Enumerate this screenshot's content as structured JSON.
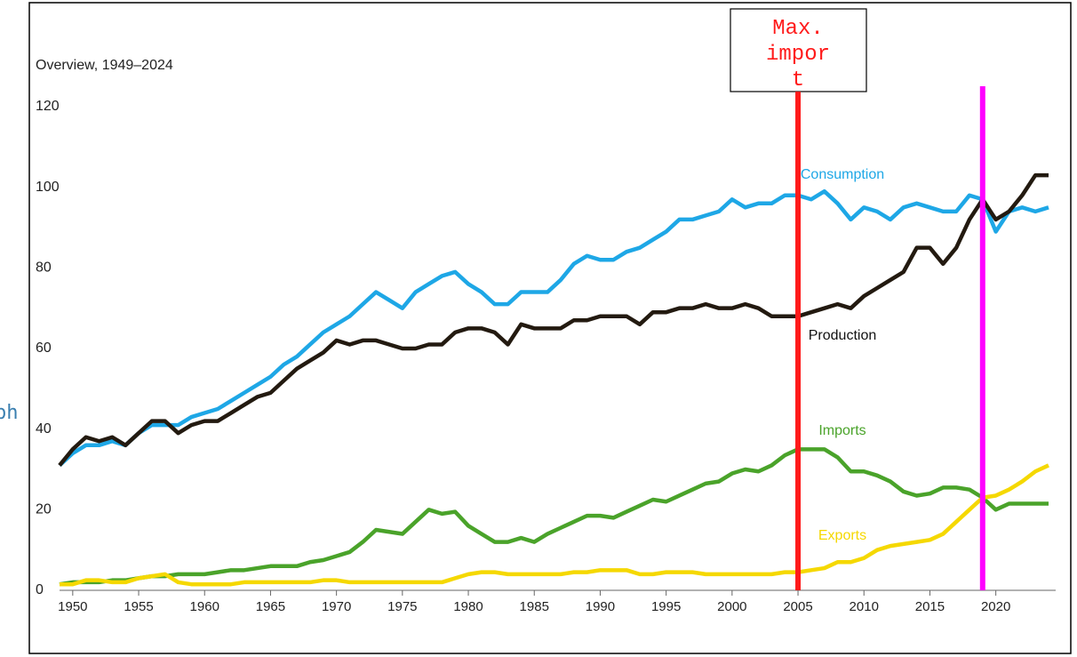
{
  "chart_data": {
    "type": "line",
    "subtitle": "Overview, 1949–2024",
    "x": [
      1949,
      1950,
      1951,
      1952,
      1953,
      1954,
      1955,
      1956,
      1957,
      1958,
      1959,
      1960,
      1961,
      1962,
      1963,
      1964,
      1965,
      1966,
      1967,
      1968,
      1969,
      1970,
      1971,
      1972,
      1973,
      1974,
      1975,
      1976,
      1977,
      1978,
      1979,
      1980,
      1981,
      1982,
      1983,
      1984,
      1985,
      1986,
      1987,
      1988,
      1989,
      1990,
      1991,
      1992,
      1993,
      1994,
      1995,
      1996,
      1997,
      1998,
      1999,
      2000,
      2001,
      2002,
      2003,
      2004,
      2005,
      2006,
      2007,
      2008,
      2009,
      2010,
      2011,
      2012,
      2013,
      2014,
      2015,
      2016,
      2017,
      2018,
      2019,
      2020,
      2021,
      2022,
      2023,
      2024
    ],
    "series": [
      {
        "name": "Consumption",
        "color": "#1ea7e6",
        "values": [
          31,
          34,
          36,
          36,
          37,
          36,
          39,
          41,
          41,
          41,
          43,
          44,
          45,
          47,
          49,
          51,
          53,
          56,
          58,
          61,
          64,
          66,
          68,
          71,
          74,
          72,
          70,
          74,
          76,
          78,
          79,
          76,
          74,
          71,
          71,
          74,
          74,
          74,
          77,
          81,
          83,
          82,
          82,
          84,
          85,
          87,
          89,
          92,
          92,
          93,
          94,
          97,
          95,
          96,
          96,
          98,
          98,
          97,
          99,
          96,
          92,
          95,
          94,
          92,
          95,
          96,
          95,
          94,
          94,
          98,
          97,
          89,
          94,
          95,
          94,
          95
        ]
      },
      {
        "name": "Production",
        "color": "#231a10",
        "values": [
          31,
          35,
          38,
          37,
          38,
          36,
          39,
          42,
          42,
          39,
          41,
          42,
          42,
          44,
          46,
          48,
          49,
          52,
          55,
          57,
          59,
          62,
          61,
          62,
          62,
          61,
          60,
          60,
          61,
          61,
          64,
          65,
          65,
          64,
          61,
          66,
          65,
          65,
          65,
          67,
          67,
          68,
          68,
          68,
          66,
          69,
          69,
          70,
          70,
          71,
          70,
          70,
          71,
          70,
          68,
          68,
          68,
          69,
          70,
          71,
          70,
          73,
          75,
          77,
          79,
          85,
          85,
          81,
          85,
          92,
          97,
          92,
          94,
          98,
          103,
          103
        ]
      },
      {
        "name": "Imports",
        "color": "#4aa32a",
        "values": [
          1.5,
          2,
          2,
          2,
          2.5,
          2.5,
          3,
          3.5,
          3.5,
          4,
          4,
          4,
          4.5,
          5,
          5,
          5.5,
          6,
          6,
          6,
          7,
          7.5,
          8.5,
          9.5,
          12,
          15,
          14.5,
          14,
          17,
          20,
          19,
          19.5,
          16,
          14,
          12,
          12,
          13,
          12,
          14,
          15.5,
          17,
          18.5,
          18.5,
          18,
          19.5,
          21,
          22.5,
          22,
          23.5,
          25,
          26.5,
          27,
          29,
          30,
          29.5,
          31,
          33.5,
          35,
          35,
          35,
          33,
          29.5,
          29.5,
          28.5,
          27,
          24.5,
          23.5,
          24,
          25.5,
          25.5,
          25,
          23,
          20,
          21.5,
          21.5,
          21.5,
          21.5
        ]
      },
      {
        "name": "Exports",
        "color": "#f5d800",
        "values": [
          1.5,
          1.5,
          2.5,
          2.5,
          2,
          2,
          3,
          3.5,
          4,
          2,
          1.5,
          1.5,
          1.5,
          1.5,
          2,
          2,
          2,
          2,
          2,
          2,
          2.5,
          2.5,
          2,
          2,
          2,
          2,
          2,
          2,
          2,
          2,
          3,
          4,
          4.5,
          4.5,
          4,
          4,
          4,
          4,
          4,
          4.5,
          4.5,
          5,
          5,
          5,
          4,
          4,
          4.5,
          4.5,
          4.5,
          4,
          4,
          4,
          4,
          4,
          4,
          4.5,
          4.5,
          5,
          5.5,
          7,
          7,
          8,
          10,
          11,
          11.5,
          12,
          12.5,
          14,
          17,
          20,
          23,
          23.5,
          25,
          27,
          29.5,
          31
        ]
      }
    ],
    "xlim": [
      1949,
      2024
    ],
    "xticks": [
      1950,
      1955,
      1960,
      1965,
      1970,
      1975,
      1980,
      1985,
      1990,
      1995,
      2000,
      2005,
      2010,
      2015,
      2020
    ],
    "ylim": [
      0,
      120
    ],
    "yticks": [
      0,
      20,
      40,
      60,
      80,
      100,
      120
    ],
    "vlines": [
      {
        "x": 2005,
        "color": "#ff1a1a"
      },
      {
        "x": 2019,
        "color": "#ff00ff"
      }
    ],
    "annotation": {
      "text": "Max. import"
    },
    "stray_text": "ph"
  }
}
